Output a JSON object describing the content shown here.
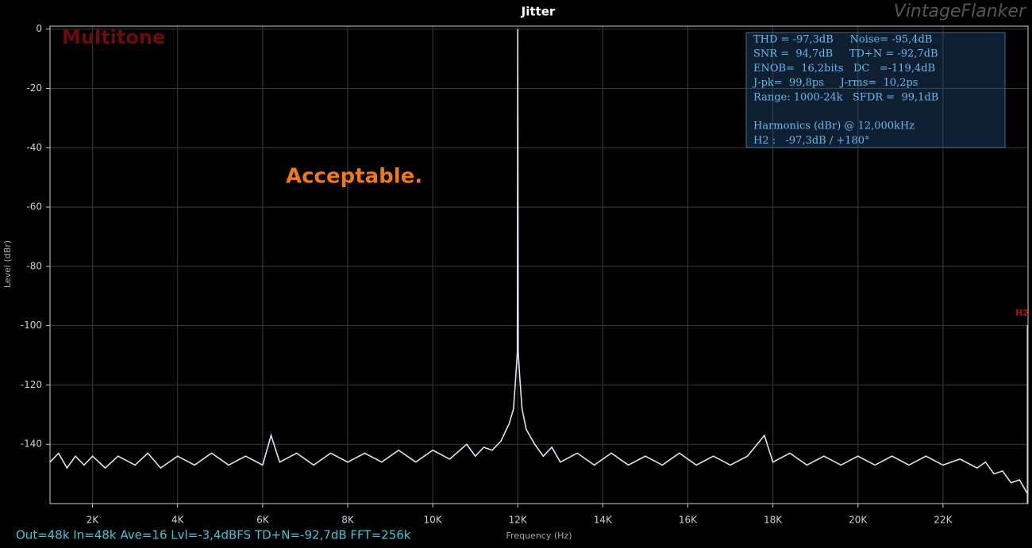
{
  "chart_data": {
    "type": "line",
    "title": "Jitter",
    "watermark": "VintageFlanker",
    "x_label": "Frequency (Hz)",
    "y_label": "Level (dBr)",
    "annotations": {
      "label": "Multitone",
      "verdict": "Acceptable.",
      "marker": "H2",
      "status": "Out=48k In=48k Ave=16 Lvl=-3,4dBFS TD+N=-92,7dB FFT=256k"
    },
    "info_box": [
      "THD = -97,3dB     Noise= -95,4dB",
      "SNR =  94,7dB     TD+N = -92,7dB",
      "ENOB=  16,2bits   DC   =-119,4dB",
      "J-pk=  99,8ps     J-rms=  10,2ps",
      "Range: 1000-24k   SFDR =  99,1dB",
      "",
      "Harmonics (dBr) @ 12,000kHz",
      "H2 :   -97,3dB / +180°"
    ],
    "xlim": [
      1000,
      24000
    ],
    "ylim": [
      -160,
      1
    ],
    "xticks": [
      {
        "value": 2000,
        "label": "2K"
      },
      {
        "value": 4000,
        "label": "4K"
      },
      {
        "value": 6000,
        "label": "6K"
      },
      {
        "value": 8000,
        "label": "8K"
      },
      {
        "value": 10000,
        "label": "10K"
      },
      {
        "value": 12000,
        "label": "12K"
      },
      {
        "value": 14000,
        "label": "14K"
      },
      {
        "value": 16000,
        "label": "16K"
      },
      {
        "value": 18000,
        "label": "18K"
      },
      {
        "value": 20000,
        "label": "20K"
      },
      {
        "value": 22000,
        "label": "22K"
      }
    ],
    "yticks": [
      0,
      -20,
      -40,
      -60,
      -80,
      -100,
      -120,
      -140
    ],
    "grid": true,
    "x": [
      1000,
      1200,
      1400,
      1600,
      1800,
      2000,
      2300,
      2600,
      3000,
      3300,
      3600,
      4000,
      4400,
      4800,
      5200,
      5600,
      6000,
      6200,
      6400,
      6800,
      7200,
      7600,
      8000,
      8400,
      8800,
      9200,
      9600,
      10000,
      10400,
      10800,
      11000,
      11200,
      11400,
      11600,
      11800,
      11900,
      11950,
      11990,
      12000,
      12010,
      12050,
      12100,
      12200,
      12400,
      12600,
      12800,
      13000,
      13400,
      13800,
      14200,
      14600,
      15000,
      15400,
      15800,
      16200,
      16600,
      17000,
      17400,
      17800,
      18000,
      18400,
      18800,
      19200,
      19600,
      20000,
      20400,
      20800,
      21200,
      21600,
      22000,
      22400,
      22800,
      23000,
      23200,
      23400,
      23600,
      23800,
      24000
    ],
    "series": [
      {
        "color": "#dfe3f0",
        "values": [
          -146,
          -143,
          -148,
          -144,
          -147,
          -144,
          -148,
          -144,
          -147,
          -143,
          -148,
          -144,
          -147,
          -143,
          -147,
          -144,
          -147,
          -137,
          -146,
          -143,
          -147,
          -143,
          -146,
          -143,
          -146,
          -142,
          -146,
          -142,
          -145,
          -140,
          -144,
          -141,
          -142,
          -139,
          -133,
          -128,
          -118,
          -109,
          0,
          -109,
          -118,
          -128,
          -135,
          -140,
          -144,
          -141,
          -146,
          -143,
          -147,
          -143,
          -147,
          -144,
          -147,
          -143,
          -147,
          -144,
          -147,
          -144,
          -137,
          -146,
          -143,
          -147,
          -144,
          -147,
          -144,
          -147,
          -144,
          -147,
          -144,
          -147,
          -145,
          -148,
          -146,
          -150,
          -149,
          -153,
          -152,
          -157
        ]
      }
    ]
  }
}
